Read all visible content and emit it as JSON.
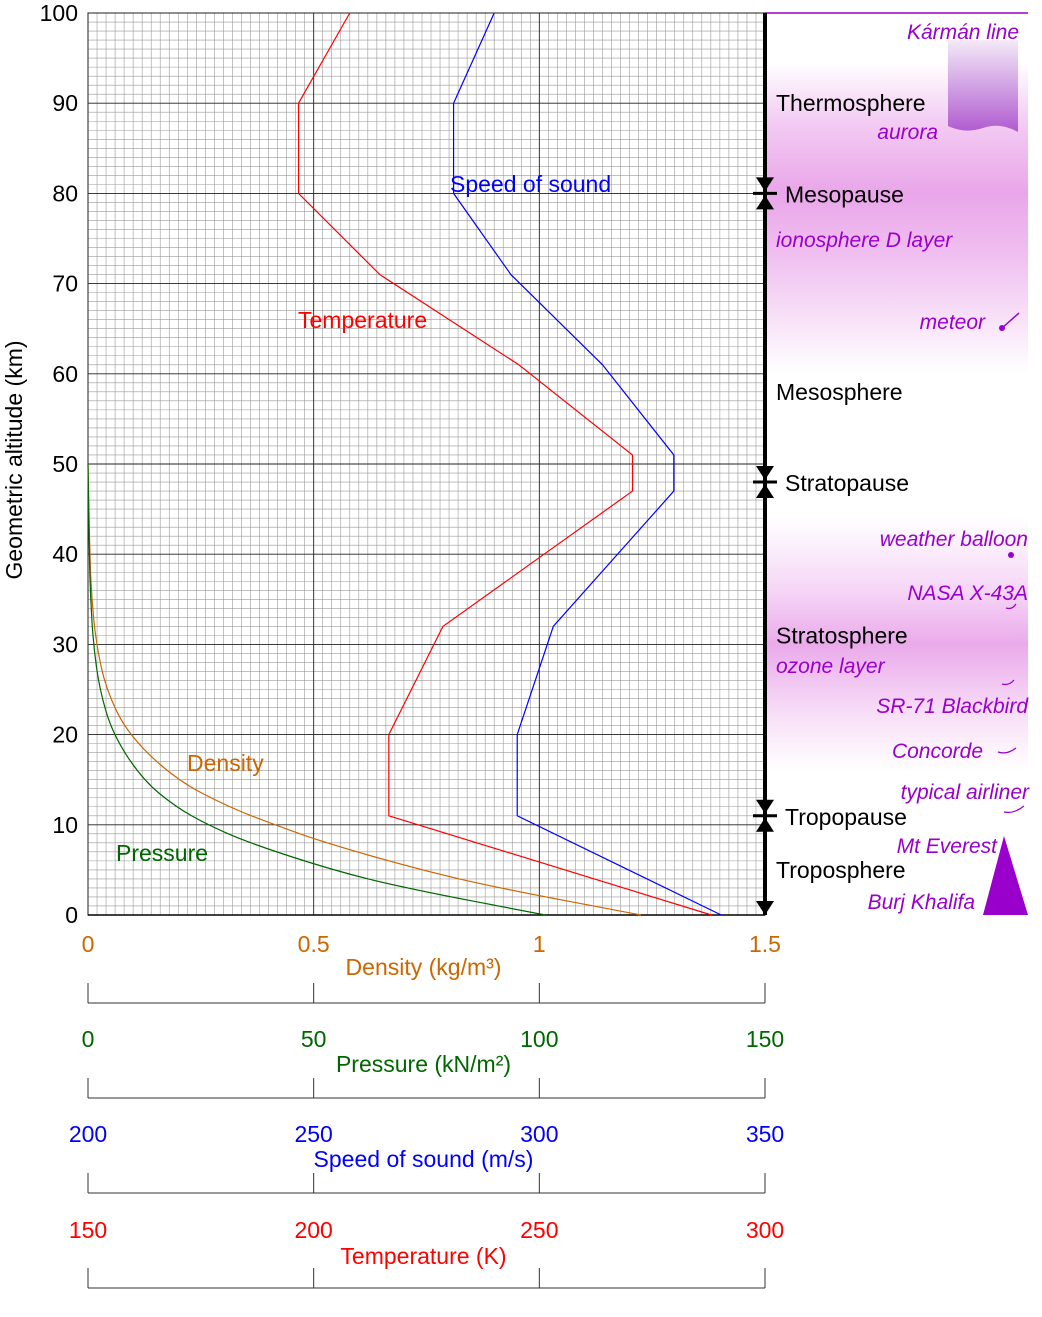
{
  "chart_data": {
    "type": "line",
    "ylabel": "Geometric altitude (km)",
    "ylim": [
      0,
      100
    ],
    "yticks": [
      "0",
      "10",
      "20",
      "30",
      "40",
      "50",
      "60",
      "70",
      "80",
      "90",
      "100"
    ],
    "grid": true,
    "series": [
      {
        "name": "Temperature",
        "color": "#ff0000",
        "axis": "temperature",
        "points": [
          [
            288.15,
            0
          ],
          [
            216.65,
            11
          ],
          [
            216.65,
            20
          ],
          [
            228.65,
            32
          ],
          [
            270.65,
            47
          ],
          [
            270.65,
            51
          ],
          [
            245.45,
            61
          ],
          [
            214.65,
            71
          ],
          [
            196.65,
            80
          ],
          [
            196.65,
            90
          ],
          [
            208.0,
            100
          ]
        ]
      },
      {
        "name": "Speed of sound",
        "color": "#0000ff",
        "axis": "speed_of_sound",
        "points": [
          [
            340.3,
            0
          ],
          [
            295.1,
            11
          ],
          [
            295.1,
            20
          ],
          [
            303.1,
            32
          ],
          [
            329.8,
            47
          ],
          [
            329.8,
            51
          ],
          [
            314.0,
            61
          ],
          [
            293.7,
            71
          ],
          [
            281.0,
            80
          ],
          [
            281.0,
            90
          ],
          [
            290.0,
            100
          ]
        ]
      },
      {
        "name": "Density",
        "color": "#cc6600",
        "axis": "density",
        "points": [
          [
            1.225,
            0
          ],
          [
            0.9091,
            3
          ],
          [
            0.7364,
            5
          ],
          [
            0.5258,
            8
          ],
          [
            0.4135,
            10
          ],
          [
            0.3108,
            12
          ],
          [
            0.1948,
            15
          ],
          [
            0.0889,
            20
          ],
          [
            0.0401,
            25
          ],
          [
            0.0184,
            30
          ],
          [
            0.0082,
            35
          ],
          [
            0.004,
            40
          ],
          [
            0.0,
            50
          ]
        ]
      },
      {
        "name": "Pressure",
        "color": "#006600",
        "axis": "pressure",
        "points": [
          [
            101.325,
            0
          ],
          [
            70.108,
            3
          ],
          [
            54.048,
            5
          ],
          [
            35.651,
            8
          ],
          [
            26.5,
            10
          ],
          [
            19.399,
            12
          ],
          [
            12.111,
            15
          ],
          [
            5.529,
            20
          ],
          [
            2.549,
            25
          ],
          [
            1.197,
            30
          ],
          [
            0.575,
            35
          ],
          [
            0.287,
            40
          ],
          [
            0.0,
            50
          ]
        ]
      }
    ],
    "axes": [
      {
        "id": "density",
        "label": "Density (kg/m³)",
        "color": "#cc6600",
        "min": 0,
        "max": 1.5,
        "ticks": [
          "0",
          "0.5",
          "1",
          "1.5"
        ]
      },
      {
        "id": "pressure",
        "label": "Pressure (kN/m²)",
        "color": "#006600",
        "min": 0,
        "max": 150,
        "ticks": [
          "0",
          "50",
          "100",
          "150"
        ]
      },
      {
        "id": "speed_of_sound",
        "label": "Speed of sound (m/s)",
        "color": "#0000ff",
        "min": 200,
        "max": 350,
        "ticks": [
          "200",
          "250",
          "300",
          "350"
        ]
      },
      {
        "id": "temperature",
        "label": "Temperature (K)",
        "color": "#ff0000",
        "min": 150,
        "max": 300,
        "ticks": [
          "150",
          "200",
          "250",
          "300"
        ]
      }
    ],
    "layers": [
      {
        "name": "Thermosphere",
        "altitude": 90
      },
      {
        "name": "Mesosphere",
        "altitude": 58
      },
      {
        "name": "Stratosphere",
        "altitude": 31
      },
      {
        "name": "Troposphere",
        "altitude": 5
      }
    ],
    "boundaries": [
      {
        "name": "Mesopause",
        "altitude": 80
      },
      {
        "name": "Stratopause",
        "altitude": 48
      },
      {
        "name": "Tropopause",
        "altitude": 11
      }
    ],
    "annotations": {
      "color": "#9900cc",
      "items": [
        {
          "label": "Kármán line",
          "altitude": 100
        },
        {
          "label": "aurora",
          "altitude": 85
        },
        {
          "label": "ionosphere D layer",
          "altitude": 74
        },
        {
          "label": "meteor",
          "altitude": 65
        },
        {
          "label": "weather balloon",
          "altitude": 40
        },
        {
          "label": "NASA X-43A",
          "altitude": 33.5
        },
        {
          "label": "ozone layer",
          "altitude": 27
        },
        {
          "label": "SR-71 Blackbird",
          "altitude": 25.9
        },
        {
          "label": "Concorde",
          "altitude": 18.3
        },
        {
          "label": "typical airliner",
          "altitude": 11.5
        },
        {
          "label": "Mt Everest",
          "altitude": 8.8
        },
        {
          "label": "Burj Khalifa",
          "altitude": 0.8
        }
      ]
    }
  }
}
